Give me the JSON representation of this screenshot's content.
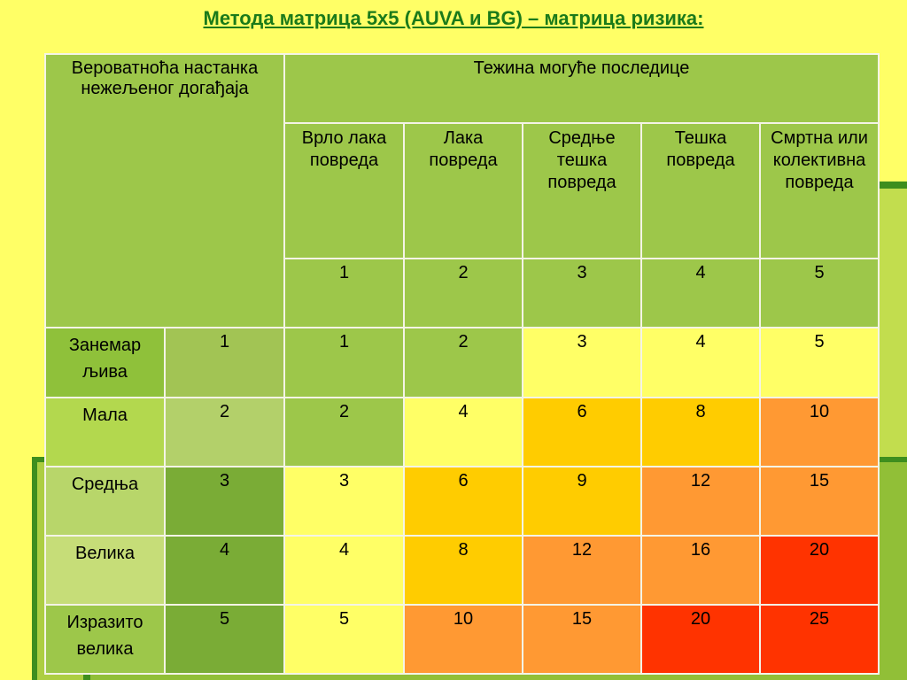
{
  "title": "Метода матрица 5x5 (AUVA и BG) – матрица ризика:",
  "corner_label": "Вероватноћа настанка нежељеног догађаја",
  "severity_title": "Тежина могуће последице",
  "severity_levels": [
    {
      "label": "Врло лака повреда",
      "value": "1"
    },
    {
      "label": "Лака повреда",
      "value": "2"
    },
    {
      "label": "Средње тешка повреда",
      "value": "3"
    },
    {
      "label": "Тешка повреда",
      "value": "4"
    },
    {
      "label": "Смртна или колективна повреда",
      "value": "5"
    }
  ],
  "probability_rows": [
    {
      "label": "Занемар љива",
      "value": "1",
      "cells": [
        "1",
        "2",
        "3",
        "4",
        "5"
      ]
    },
    {
      "label": "Мала",
      "value": "2",
      "cells": [
        "2",
        "4",
        "6",
        "8",
        "10"
      ]
    },
    {
      "label": "Средња",
      "value": "3",
      "cells": [
        "3",
        "6",
        "9",
        "12",
        "15"
      ]
    },
    {
      "label": "Велика",
      "value": "4",
      "cells": [
        "4",
        "8",
        "12",
        "16",
        "20"
      ]
    },
    {
      "label": "Изразито велика",
      "value": "5",
      "cells": [
        "5",
        "10",
        "15",
        "20",
        "25"
      ]
    }
  ],
  "colors": {
    "score_1_2": "#9dc74a",
    "score_3_5": "#ffff66",
    "score_6_9": "#ffcc00",
    "score_10_16": "#ff9933",
    "score_20_25": "#ff3300"
  }
}
